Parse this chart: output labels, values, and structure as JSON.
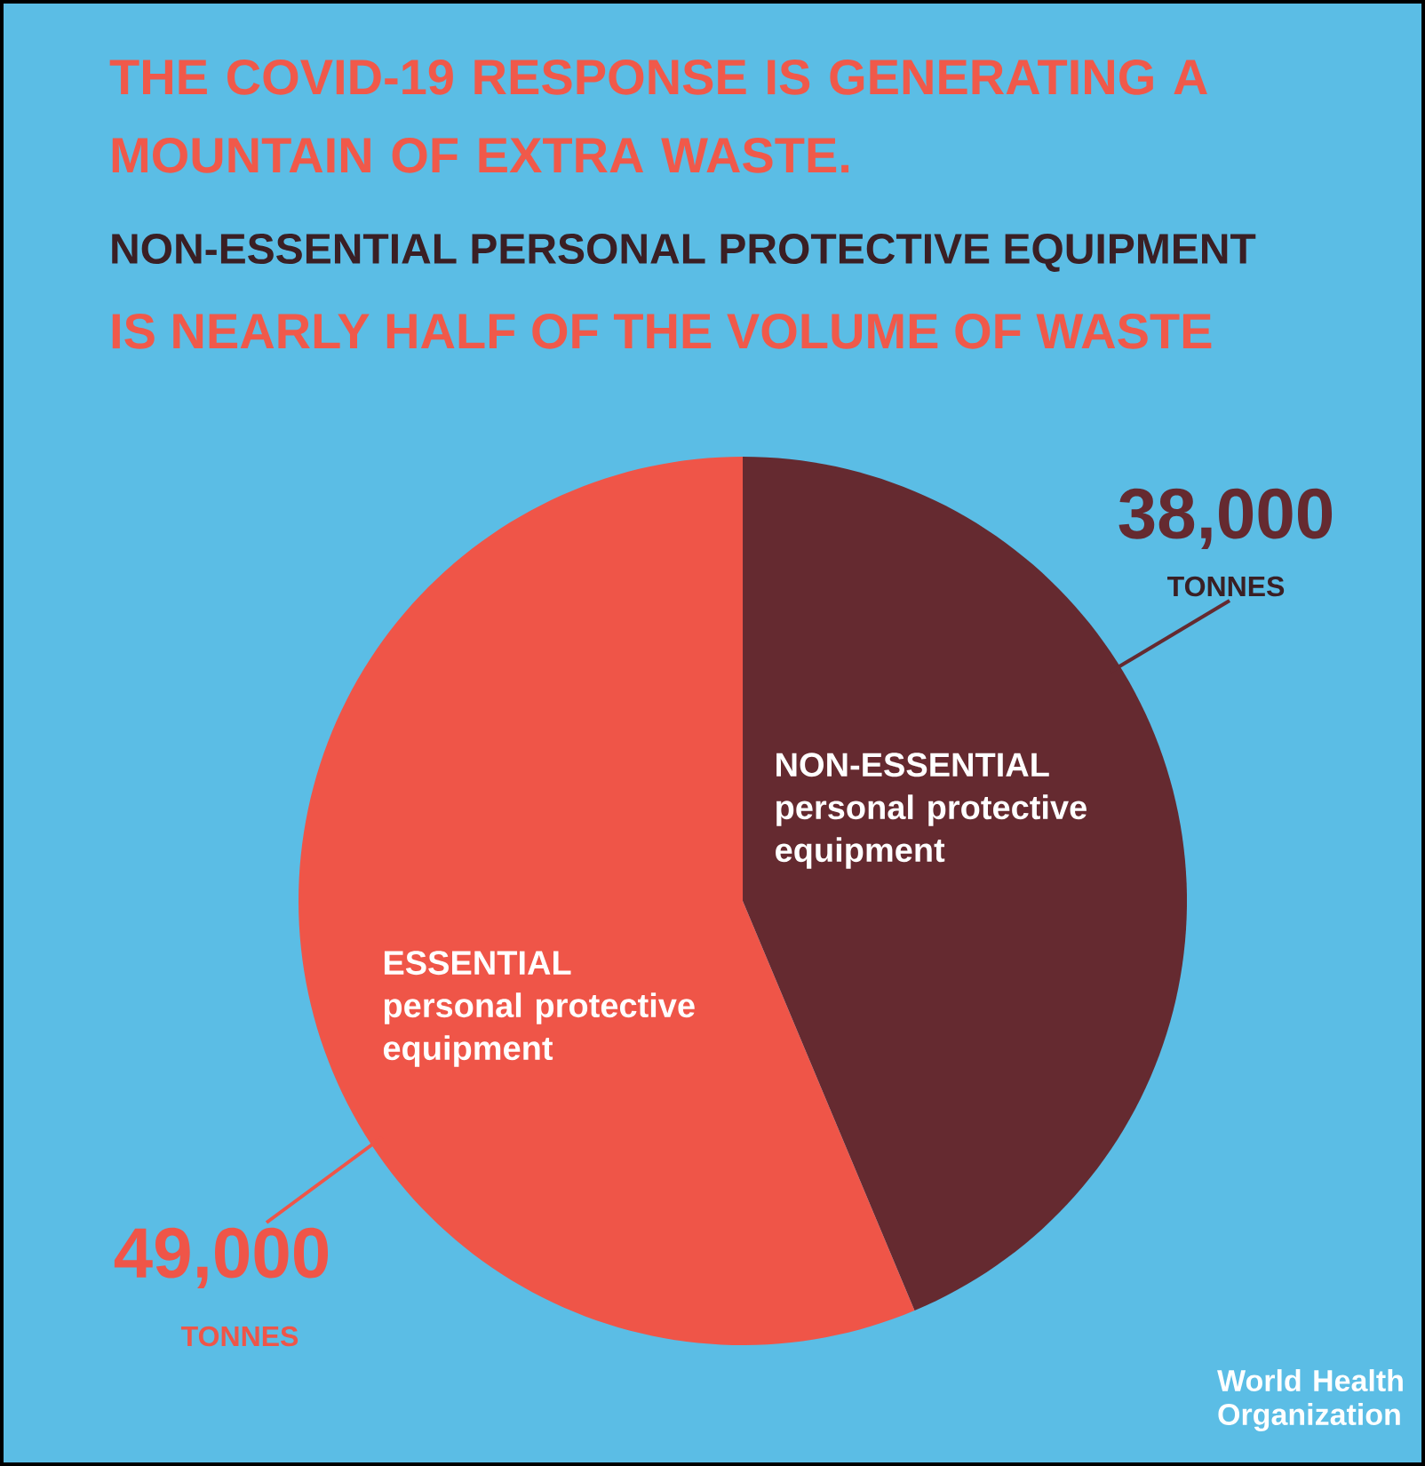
{
  "chart_data": {
    "type": "pie",
    "title": "THE COVID-19 RESPONSE IS GENERATING A MOUNTAIN OF EXTRA WASTE.",
    "subtitle": "NON-ESSENTIAL PERSONAL PROTECTIVE EQUIPMENT",
    "categories": [
      "NON-ESSENTIAL personal protective equipment",
      "ESSENTIAL personal protective equipment"
    ],
    "values": [
      38000,
      49000
    ],
    "colors": [
      "#652a30",
      "#ef5548"
    ],
    "value_labels": [
      "38,000",
      "49,000"
    ],
    "annotations": [
      "IS NEARLY HALF OF THE VOLUME OF WASTE",
      "TONNES",
      "TONNES",
      "World Health Organization"
    ]
  }
}
